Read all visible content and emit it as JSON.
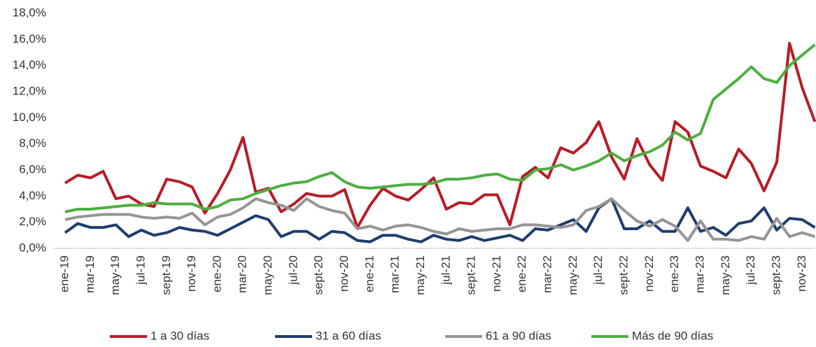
{
  "chart_data": {
    "type": "line",
    "categories": [
      "ene-19",
      null,
      "mar-19",
      null,
      "may-19",
      null,
      "jul-19",
      null,
      "sept-19",
      null,
      "nov-19",
      null,
      "ene-20",
      null,
      "mar-20",
      null,
      "may-20",
      null,
      "jul-20",
      null,
      "sept-20",
      null,
      "nov-20",
      null,
      "ene-21",
      null,
      "mar-21",
      null,
      "may-21",
      null,
      "jul-21",
      null,
      "sept-21",
      null,
      "nov-21",
      null,
      "ene-22",
      null,
      "mar-22",
      null,
      "may-22",
      null,
      "jul-22",
      null,
      "sept-22",
      null,
      "nov-22",
      null,
      "ene-23",
      null,
      "mar-23",
      null,
      "may-23",
      null,
      "jul-23",
      null,
      "sept-23",
      null,
      "nov-23",
      null
    ],
    "series": [
      {
        "name": "1 a 30 días",
        "color": "#b81c25",
        "values": [
          5.0,
          5.6,
          5.4,
          5.9,
          3.8,
          4.0,
          3.4,
          3.2,
          5.3,
          5.1,
          4.7,
          2.7,
          4.2,
          6.0,
          8.5,
          4.3,
          4.6,
          2.8,
          3.4,
          4.2,
          4.0,
          4.0,
          4.5,
          1.6,
          3.3,
          4.6,
          4.0,
          3.7,
          4.5,
          5.4,
          3.0,
          3.5,
          3.4,
          4.1,
          4.1,
          1.8,
          5.5,
          6.2,
          5.4,
          7.7,
          7.3,
          8.1,
          9.7,
          7.0,
          5.3,
          8.4,
          6.4,
          5.2,
          9.7,
          8.9,
          6.3,
          5.9,
          5.4,
          7.6,
          6.5,
          4.4,
          6.6,
          15.7,
          12.3,
          9.7
        ]
      },
      {
        "name": "31 a 60 días",
        "color": "#1f3d6e",
        "values": [
          1.2,
          1.9,
          1.6,
          1.6,
          1.8,
          0.9,
          1.4,
          1.0,
          1.2,
          1.6,
          1.4,
          1.3,
          1.0,
          1.5,
          2.0,
          2.5,
          2.2,
          0.9,
          1.3,
          1.3,
          0.7,
          1.3,
          1.2,
          0.6,
          0.5,
          1.0,
          1.0,
          0.7,
          0.5,
          1.0,
          0.7,
          0.6,
          0.9,
          0.6,
          0.8,
          1.0,
          0.6,
          1.5,
          1.4,
          1.8,
          2.2,
          1.3,
          3.1,
          3.8,
          1.5,
          1.5,
          2.1,
          1.3,
          1.3,
          3.1,
          1.3,
          1.6,
          1.0,
          1.9,
          2.1,
          3.1,
          1.4,
          2.3,
          2.2,
          1.6
        ]
      },
      {
        "name": "61 a 90 días",
        "color": "#959595",
        "values": [
          2.2,
          2.4,
          2.5,
          2.6,
          2.6,
          2.6,
          2.4,
          2.3,
          2.4,
          2.3,
          2.7,
          1.8,
          2.4,
          2.6,
          3.1,
          3.8,
          3.5,
          3.3,
          2.9,
          3.8,
          3.2,
          2.9,
          2.7,
          1.5,
          1.7,
          1.4,
          1.7,
          1.8,
          1.6,
          1.3,
          1.1,
          1.5,
          1.3,
          1.4,
          1.5,
          1.5,
          1.8,
          1.8,
          1.7,
          1.6,
          1.8,
          2.9,
          3.2,
          3.8,
          2.9,
          2.1,
          1.7,
          2.2,
          1.7,
          0.6,
          2.1,
          0.7,
          0.7,
          0.6,
          0.9,
          0.7,
          2.3,
          0.9,
          1.2,
          0.9
        ]
      },
      {
        "name": "Más de 90 días",
        "color": "#4caf3f",
        "values": [
          2.8,
          3.0,
          3.0,
          3.1,
          3.2,
          3.3,
          3.3,
          3.5,
          3.4,
          3.4,
          3.4,
          3.0,
          3.2,
          3.7,
          3.8,
          4.2,
          4.5,
          4.8,
          5.0,
          5.1,
          5.5,
          5.8,
          5.1,
          4.7,
          4.6,
          4.7,
          4.8,
          4.9,
          4.9,
          5.0,
          5.3,
          5.3,
          5.4,
          5.6,
          5.7,
          5.3,
          5.2,
          6.0,
          6.1,
          6.4,
          6.0,
          6.3,
          6.7,
          7.3,
          6.7,
          7.1,
          7.4,
          7.9,
          8.9,
          8.3,
          8.8,
          11.4,
          12.2,
          13.0,
          13.9,
          13.0,
          12.7,
          14.0,
          14.8,
          15.6
        ]
      }
    ],
    "ylim": [
      0,
      18
    ],
    "yticks": [
      {
        "value": 0,
        "label": "0,0%"
      },
      {
        "value": 2,
        "label": "2,0%"
      },
      {
        "value": 4,
        "label": "4,0%"
      },
      {
        "value": 6,
        "label": "6,0%"
      },
      {
        "value": 8,
        "label": "8,0%"
      },
      {
        "value": 10,
        "label": "10,0%"
      },
      {
        "value": 12,
        "label": "12,0%"
      },
      {
        "value": 14,
        "label": "14,0%"
      },
      {
        "value": 16,
        "label": "16,0%"
      },
      {
        "value": 18,
        "label": "18,0%"
      }
    ],
    "legend": "bottom"
  }
}
